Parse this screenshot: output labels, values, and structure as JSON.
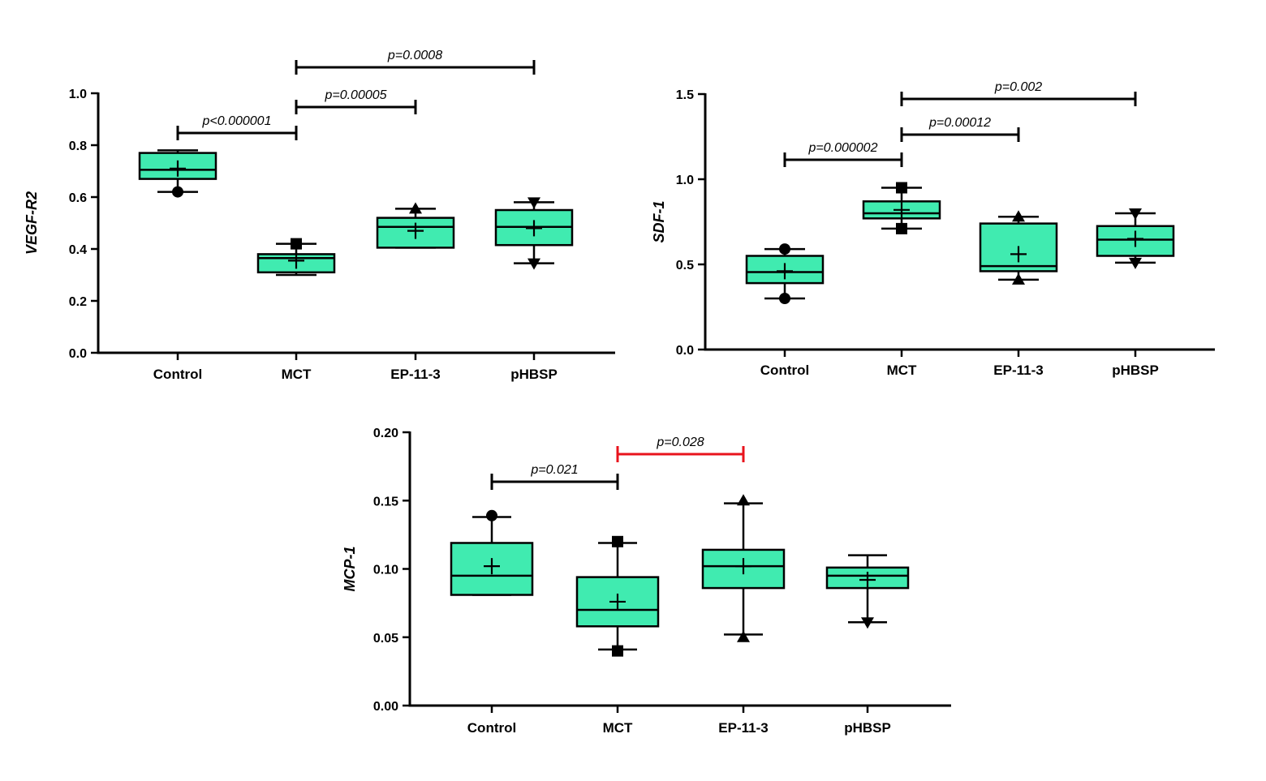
{
  "colors": {
    "box_fill": "#40EBB0",
    "stroke": "#000000",
    "highlight_bracket": "#E8131C"
  },
  "chart_data": [
    {
      "type": "box",
      "ylabel": "VEGF-R2",
      "ylim": [
        0,
        1.0
      ],
      "yticks": [
        "0.0",
        "0.2",
        "0.4",
        "0.6",
        "0.8",
        "1.0"
      ],
      "tick_values": [
        0,
        0.2,
        0.4,
        0.6,
        0.8,
        1.0
      ],
      "categories": [
        "Control",
        "MCT",
        "EP-11-3",
        "pHBSP"
      ],
      "boxes": [
        {
          "min": 0.62,
          "q1": 0.67,
          "median": 0.705,
          "q3": 0.77,
          "max": 0.78,
          "mean": 0.71,
          "marker": "circle",
          "marker_points": [
            0.62
          ]
        },
        {
          "min": 0.3,
          "q1": 0.31,
          "median": 0.365,
          "q3": 0.38,
          "max": 0.42,
          "mean": 0.355,
          "marker": "square",
          "marker_points": [
            0.42
          ]
        },
        {
          "min": 0.405,
          "q1": 0.405,
          "median": 0.485,
          "q3": 0.52,
          "max": 0.555,
          "mean": 0.47,
          "marker": "triangle-up",
          "marker_points": [
            0.555
          ]
        },
        {
          "min": 0.345,
          "q1": 0.415,
          "median": 0.485,
          "q3": 0.55,
          "max": 0.58,
          "mean": 0.48,
          "marker": "triangle-down",
          "marker_points": [
            0.58,
            0.345
          ]
        }
      ],
      "brackets": [
        {
          "from": 0,
          "to": 1,
          "label": "p<0.000001",
          "highlight": false
        },
        {
          "from": 1,
          "to": 2,
          "label": "p=0.00005",
          "highlight": false
        },
        {
          "from": 1,
          "to": 3,
          "label": "p=0.0008",
          "highlight": false
        }
      ]
    },
    {
      "type": "box",
      "ylabel": "SDF-1",
      "ylim": [
        0,
        1.5
      ],
      "yticks": [
        "0.0",
        "0.5",
        "1.0",
        "1.5"
      ],
      "tick_values": [
        0,
        0.5,
        1.0,
        1.5
      ],
      "categories": [
        "Control",
        "MCT",
        "EP-11-3",
        "pHBSP"
      ],
      "boxes": [
        {
          "min": 0.3,
          "q1": 0.39,
          "median": 0.455,
          "q3": 0.55,
          "max": 0.59,
          "mean": 0.46,
          "marker": "circle",
          "marker_points": [
            0.59,
            0.3
          ]
        },
        {
          "min": 0.71,
          "q1": 0.77,
          "median": 0.8,
          "q3": 0.87,
          "max": 0.95,
          "mean": 0.82,
          "marker": "square",
          "marker_points": [
            0.95,
            0.71
          ]
        },
        {
          "min": 0.41,
          "q1": 0.46,
          "median": 0.49,
          "q3": 0.74,
          "max": 0.78,
          "mean": 0.56,
          "marker": "triangle-up",
          "marker_points": [
            0.78,
            0.41
          ]
        },
        {
          "min": 0.51,
          "q1": 0.55,
          "median": 0.645,
          "q3": 0.725,
          "max": 0.8,
          "mean": 0.65,
          "marker": "triangle-down",
          "marker_points": [
            0.8,
            0.51
          ]
        }
      ],
      "brackets": [
        {
          "from": 0,
          "to": 1,
          "label": "p=0.000002",
          "highlight": false
        },
        {
          "from": 1,
          "to": 2,
          "label": "p=0.00012",
          "highlight": false
        },
        {
          "from": 1,
          "to": 3,
          "label": "p=0.002",
          "highlight": false
        }
      ]
    },
    {
      "type": "box",
      "ylabel": "MCP-1",
      "ylim": [
        0,
        0.2
      ],
      "yticks": [
        "0.00",
        "0.05",
        "0.10",
        "0.15",
        "0.20"
      ],
      "tick_values": [
        0,
        0.05,
        0.1,
        0.15,
        0.2
      ],
      "categories": [
        "Control",
        "MCT",
        "EP-11-3",
        "pHBSP"
      ],
      "boxes": [
        {
          "min": 0.081,
          "q1": 0.081,
          "median": 0.095,
          "q3": 0.119,
          "max": 0.138,
          "mean": 0.102,
          "marker": "circle",
          "marker_points": [
            0.139
          ]
        },
        {
          "min": 0.041,
          "q1": 0.058,
          "median": 0.07,
          "q3": 0.094,
          "max": 0.119,
          "mean": 0.076,
          "marker": "square",
          "marker_points": [
            0.12,
            0.04
          ]
        },
        {
          "min": 0.052,
          "q1": 0.086,
          "median": 0.102,
          "q3": 0.114,
          "max": 0.148,
          "mean": 0.102,
          "marker": "triangle-up",
          "marker_points": [
            0.15,
            0.05
          ]
        },
        {
          "min": 0.061,
          "q1": 0.086,
          "median": 0.095,
          "q3": 0.101,
          "max": 0.11,
          "mean": 0.092,
          "marker": "triangle-down",
          "marker_points": [
            0.061
          ]
        }
      ],
      "brackets": [
        {
          "from": 0,
          "to": 1,
          "label": "p=0.021",
          "highlight": false
        },
        {
          "from": 1,
          "to": 2,
          "label": "p=0.028",
          "highlight": true
        }
      ]
    }
  ]
}
